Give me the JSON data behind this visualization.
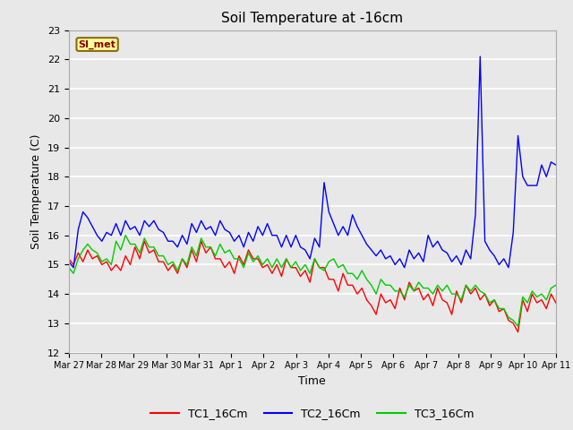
{
  "title": "Soil Temperature at -16cm",
  "xlabel": "Time",
  "ylabel": "Soil Temperature (C)",
  "ylim": [
    12.0,
    23.0
  ],
  "yticks": [
    12.0,
    13.0,
    14.0,
    15.0,
    16.0,
    17.0,
    18.0,
    19.0,
    20.0,
    21.0,
    22.0,
    23.0
  ],
  "background_color": "#e8e8e8",
  "plot_bg_color": "#e8e8e8",
  "grid_color": "#ffffff",
  "annotation_text": "SI_met",
  "annotation_bg": "#ffff99",
  "annotation_border": "#8b6914",
  "annotation_text_color": "#8b0000",
  "legend_labels": [
    "TC1_16Cm",
    "TC2_16Cm",
    "TC3_16Cm"
  ],
  "legend_colors": [
    "#ff0000",
    "#0000ff",
    "#00cc00"
  ],
  "x_tick_labels": [
    "Mar 27",
    "Mar 28",
    "Mar 29",
    "Mar 30",
    "Mar 31",
    "Apr 1",
    "Apr 2",
    "Apr 3",
    "Apr 4",
    "Apr 5",
    "Apr 6",
    "Apr 7",
    "Apr 8",
    "Apr 9",
    "Apr 10",
    "Apr 11"
  ],
  "TC1_y": [
    15.2,
    15.0,
    15.4,
    15.1,
    15.5,
    15.2,
    15.3,
    15.0,
    15.1,
    14.8,
    15.0,
    14.8,
    15.3,
    15.0,
    15.6,
    15.2,
    15.8,
    15.4,
    15.5,
    15.1,
    15.1,
    14.8,
    15.0,
    14.7,
    15.2,
    14.9,
    15.5,
    15.1,
    15.8,
    15.4,
    15.6,
    15.2,
    15.2,
    14.9,
    15.1,
    14.7,
    15.3,
    15.0,
    15.5,
    15.2,
    15.2,
    14.9,
    15.0,
    14.7,
    15.0,
    14.6,
    15.2,
    14.9,
    14.9,
    14.6,
    14.8,
    14.4,
    15.2,
    14.9,
    14.9,
    14.5,
    14.5,
    14.1,
    14.7,
    14.3,
    14.3,
    14.0,
    14.2,
    13.8,
    13.6,
    13.3,
    14.0,
    13.7,
    13.8,
    13.5,
    14.2,
    13.8,
    14.4,
    14.1,
    14.2,
    13.8,
    14.0,
    13.6,
    14.2,
    13.8,
    13.7,
    13.3,
    14.1,
    13.7,
    14.3,
    14.0,
    14.2,
    13.8,
    14.0,
    13.6,
    13.8,
    13.4,
    13.5,
    13.1,
    13.0,
    12.7,
    13.8,
    13.4,
    14.0,
    13.7,
    13.8,
    13.5,
    14.0,
    13.7
  ],
  "TC2_y": [
    15.1,
    14.9,
    16.2,
    16.8,
    16.6,
    16.3,
    16.0,
    15.8,
    16.1,
    16.0,
    16.4,
    16.0,
    16.5,
    16.2,
    16.3,
    16.0,
    16.5,
    16.3,
    16.5,
    16.2,
    16.1,
    15.8,
    15.8,
    15.6,
    16.0,
    15.7,
    16.4,
    16.1,
    16.5,
    16.2,
    16.3,
    16.0,
    16.5,
    16.2,
    16.1,
    15.8,
    16.0,
    15.6,
    16.1,
    15.8,
    16.3,
    16.0,
    16.4,
    16.0,
    16.0,
    15.6,
    16.0,
    15.6,
    16.0,
    15.6,
    15.5,
    15.2,
    15.9,
    15.6,
    17.8,
    16.8,
    16.4,
    16.0,
    16.3,
    16.0,
    16.7,
    16.3,
    16.0,
    15.7,
    15.5,
    15.3,
    15.5,
    15.2,
    15.3,
    15.0,
    15.2,
    14.9,
    15.5,
    15.2,
    15.4,
    15.1,
    16.0,
    15.6,
    15.8,
    15.5,
    15.4,
    15.1,
    15.3,
    15.0,
    15.5,
    15.2,
    16.7,
    22.1,
    15.8,
    15.5,
    15.3,
    15.0,
    15.2,
    14.9,
    16.1,
    19.4,
    18.0,
    17.7,
    17.7,
    17.7,
    18.4,
    18.0,
    18.5,
    18.4
  ],
  "TC3_y": [
    14.9,
    14.7,
    15.2,
    15.5,
    15.7,
    15.5,
    15.4,
    15.1,
    15.2,
    15.0,
    15.8,
    15.5,
    16.0,
    15.7,
    15.7,
    15.4,
    15.9,
    15.6,
    15.6,
    15.3,
    15.3,
    15.0,
    15.1,
    14.8,
    15.2,
    15.0,
    15.6,
    15.3,
    15.9,
    15.6,
    15.6,
    15.3,
    15.7,
    15.4,
    15.5,
    15.2,
    15.2,
    14.9,
    15.4,
    15.1,
    15.3,
    15.0,
    15.2,
    14.9,
    15.2,
    14.9,
    15.2,
    14.9,
    15.1,
    14.8,
    15.0,
    14.7,
    15.2,
    14.9,
    14.8,
    15.1,
    15.2,
    14.9,
    15.0,
    14.7,
    14.7,
    14.5,
    14.8,
    14.5,
    14.3,
    14.0,
    14.5,
    14.3,
    14.3,
    14.1,
    14.1,
    13.9,
    14.3,
    14.1,
    14.4,
    14.2,
    14.2,
    14.0,
    14.3,
    14.1,
    14.3,
    14.0,
    14.0,
    13.8,
    14.3,
    14.1,
    14.3,
    14.1,
    14.0,
    13.7,
    13.8,
    13.5,
    13.5,
    13.2,
    13.1,
    12.9,
    13.9,
    13.7,
    14.1,
    13.9,
    14.0,
    13.8,
    14.2,
    14.3
  ]
}
